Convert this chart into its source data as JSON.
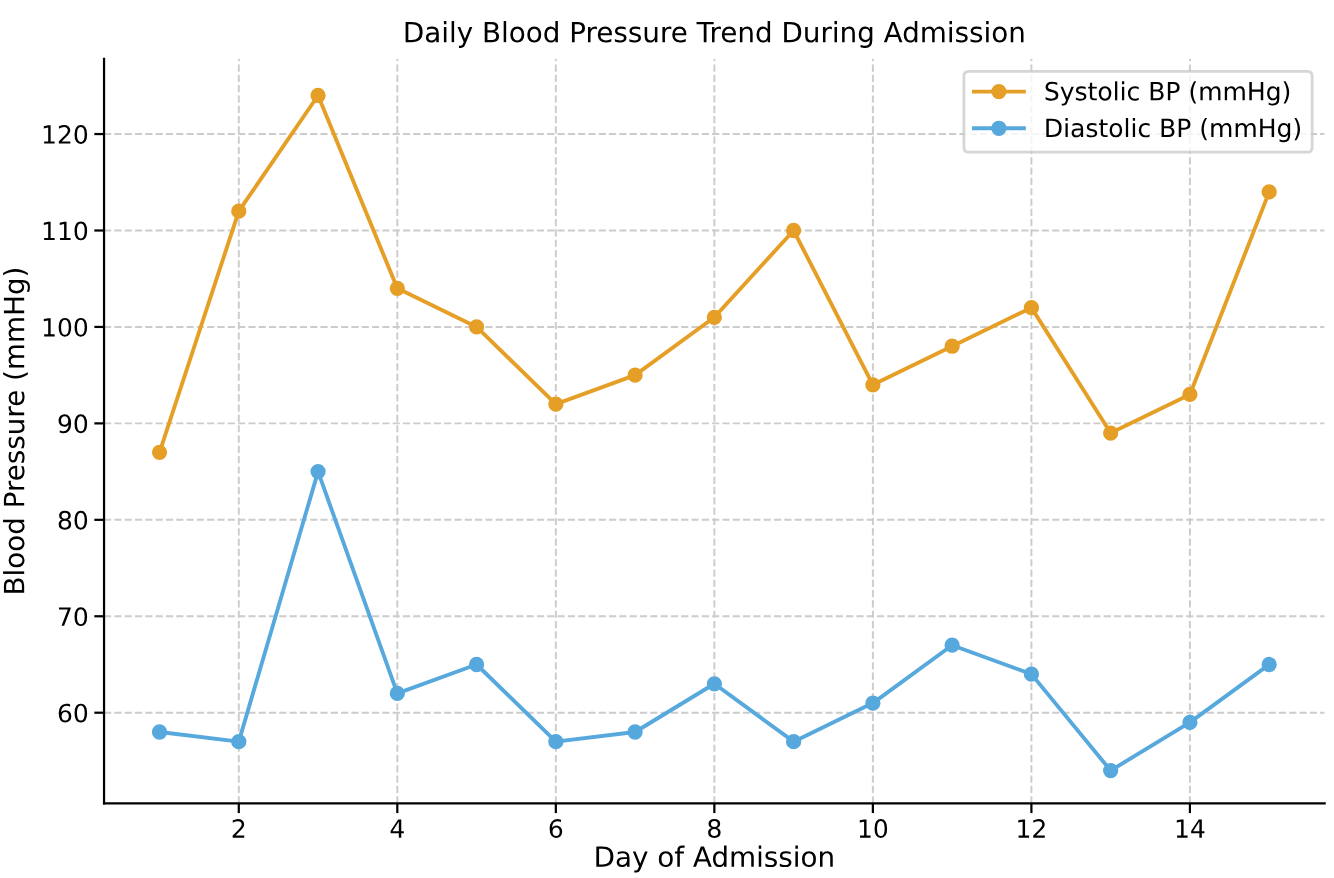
{
  "chart_data": {
    "type": "line",
    "title": "Daily Blood Pressure Trend During Admission",
    "xlabel": "Day of Admission",
    "ylabel": "Blood Pressure (mmHg)",
    "x": [
      1,
      2,
      3,
      4,
      5,
      6,
      7,
      8,
      9,
      10,
      11,
      12,
      13,
      14,
      15
    ],
    "series": [
      {
        "name": "Systolic BP (mmHg)",
        "color": "#e69f26",
        "values": [
          87,
          112,
          124,
          104,
          100,
          92,
          95,
          101,
          110,
          94,
          98,
          102,
          89,
          93,
          114
        ]
      },
      {
        "name": "Diastolic BP (mmHg)",
        "color": "#56a8dd",
        "values": [
          58,
          57,
          85,
          62,
          65,
          57,
          58,
          63,
          57,
          61,
          67,
          64,
          54,
          59,
          65
        ]
      }
    ],
    "xlim": [
      0.3,
      15.7
    ],
    "ylim": [
      50.6,
      127.8
    ],
    "xticks": [
      2,
      4,
      6,
      8,
      10,
      12,
      14
    ],
    "yticks": [
      60,
      70,
      80,
      90,
      100,
      110,
      120
    ],
    "grid": true,
    "legend": "top right",
    "marker": "circle",
    "line_style": "solid"
  }
}
